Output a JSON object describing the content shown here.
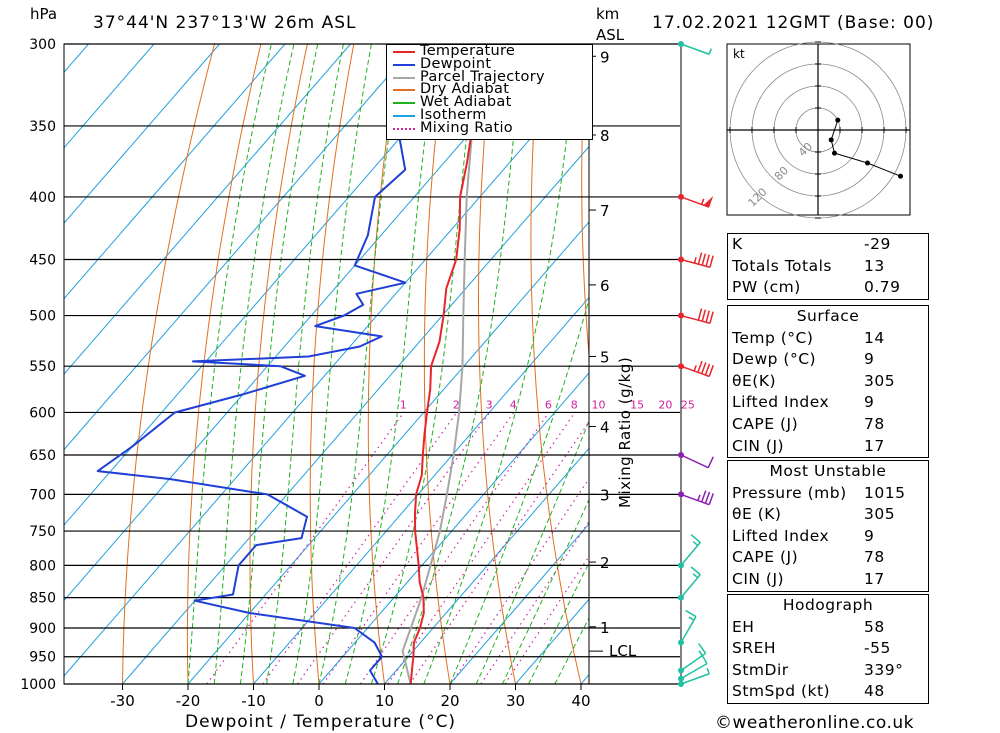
{
  "header": {
    "pressure_unit": "hPa",
    "location": "37°44'N 237°13'W 26m ASL",
    "km_label": "km",
    "asl_label": "ASL",
    "datetime": "17.02.2021 12GMT (Base: 00)"
  },
  "footer": {
    "xlabel": "Dewpoint / Temperature (°C)",
    "mixing_label": "Mixing Ratio (g/kg)",
    "lcl_label": "LCL",
    "credit": "©weatheronline.co.uk"
  },
  "colors": {
    "temperature": "#e8262a",
    "dewpoint": "#1f3fd6",
    "parcel": "#a6a6a6",
    "dry_adiabat": "#e07020",
    "wet_adiabat": "#20b020",
    "isotherm": "#20a0e0",
    "mixing_ratio": "#d020a0",
    "wind_red": "#e8262a",
    "wind_purple": "#8a1fb0",
    "wind_teal": "#20c0a0"
  },
  "legend": [
    {
      "label": "Temperature",
      "color": "#e8262a",
      "style": "solid"
    },
    {
      "label": "Dewpoint",
      "color": "#1f3fd6",
      "style": "solid"
    },
    {
      "label": "Parcel Trajectory",
      "color": "#a6a6a6",
      "style": "solid"
    },
    {
      "label": "Dry Adiabat",
      "color": "#e07020",
      "style": "solid"
    },
    {
      "label": "Wet Adiabat",
      "color": "#20b020",
      "style": "solid"
    },
    {
      "label": "Isotherm",
      "color": "#20a0e0",
      "style": "solid"
    },
    {
      "label": "Mixing Ratio",
      "color": "#d020a0",
      "style": "dotted"
    }
  ],
  "hodograph": {
    "unit_label": "kt",
    "ring_labels": [
      "40",
      "80",
      "120"
    ]
  },
  "indices": [
    {
      "label": "K",
      "value": "-29"
    },
    {
      "label": "Totals Totals",
      "value": "13"
    },
    {
      "label": "PW (cm)",
      "value": "0.79"
    }
  ],
  "surface": {
    "title": "Surface",
    "rows": [
      {
        "label": "Temp (°C)",
        "value": "14"
      },
      {
        "label": "Dewp (°C)",
        "value": "9"
      },
      {
        "label": "θE(K)",
        "value": "305"
      },
      {
        "label": "Lifted Index",
        "value": "9"
      },
      {
        "label": "CAPE (J)",
        "value": "78"
      },
      {
        "label": "CIN (J)",
        "value": "17"
      }
    ]
  },
  "most_unstable": {
    "title": "Most Unstable",
    "rows": [
      {
        "label": "Pressure (mb)",
        "value": "1015"
      },
      {
        "label": "θE (K)",
        "value": "305"
      },
      {
        "label": "Lifted Index",
        "value": "9"
      },
      {
        "label": "CAPE (J)",
        "value": "78"
      },
      {
        "label": "CIN (J)",
        "value": "17"
      }
    ]
  },
  "hodograph_table": {
    "title": "Hodograph",
    "rows": [
      {
        "label": "EH",
        "value": "58"
      },
      {
        "label": "SREH",
        "value": "-55"
      },
      {
        "label": "StmDir",
        "value": "339°"
      },
      {
        "label": "StmSpd (kt)",
        "value": "48"
      }
    ]
  },
  "chart_data": {
    "type": "skew-t",
    "ylabel": "hPa",
    "xlabel": "Dewpoint / Temperature (°C)",
    "pressure_levels": [
      300,
      350,
      400,
      450,
      500,
      550,
      600,
      650,
      700,
      750,
      800,
      850,
      900,
      950,
      1000
    ],
    "temperature_ticks": [
      -30,
      -20,
      -10,
      0,
      10,
      20,
      30,
      40
    ],
    "xlim": [
      -40,
      40
    ],
    "ylim": [
      1000,
      300
    ],
    "km_ticks": [
      {
        "km": 1,
        "p": 898
      },
      {
        "km": 2,
        "p": 795
      },
      {
        "km": 3,
        "p": 700
      },
      {
        "km": 4,
        "p": 616
      },
      {
        "km": 5,
        "p": 540
      },
      {
        "km": 6,
        "p": 472
      },
      {
        "km": 7,
        "p": 410
      },
      {
        "km": 8,
        "p": 356
      },
      {
        "km": 9,
        "p": 307
      }
    ],
    "lcl_pressure": 940,
    "mixing_ratio_labels": [
      "1",
      "2",
      "3",
      "4",
      "6",
      "8",
      "10",
      "15",
      "20",
      "25"
    ],
    "mixing_ratio_values": [
      1,
      2,
      3,
      4,
      6,
      8,
      10,
      15,
      20,
      25
    ],
    "temperature_profile": [
      {
        "p": 1000,
        "t": 14.0
      },
      {
        "p": 975,
        "t": 12.4
      },
      {
        "p": 950,
        "t": 10.8
      },
      {
        "p": 925,
        "t": 9.0
      },
      {
        "p": 900,
        "t": 8.0
      },
      {
        "p": 875,
        "t": 6.6
      },
      {
        "p": 850,
        "t": 4.5
      },
      {
        "p": 825,
        "t": 1.8
      },
      {
        "p": 800,
        "t": -0.5
      },
      {
        "p": 775,
        "t": -3.0
      },
      {
        "p": 750,
        "t": -5.6
      },
      {
        "p": 725,
        "t": -8.0
      },
      {
        "p": 700,
        "t": -10.3
      },
      {
        "p": 675,
        "t": -12.0
      },
      {
        "p": 650,
        "t": -14.5
      },
      {
        "p": 625,
        "t": -17.0
      },
      {
        "p": 600,
        "t": -19.5
      },
      {
        "p": 575,
        "t": -22.0
      },
      {
        "p": 550,
        "t": -25.0
      },
      {
        "p": 525,
        "t": -27.0
      },
      {
        "p": 500,
        "t": -29.8
      },
      {
        "p": 475,
        "t": -33.0
      },
      {
        "p": 450,
        "t": -35.3
      },
      {
        "p": 425,
        "t": -38.8
      },
      {
        "p": 400,
        "t": -43.0
      },
      {
        "p": 375,
        "t": -46.5
      },
      {
        "p": 350,
        "t": -50.5
      },
      {
        "p": 325,
        "t": -54.0
      },
      {
        "p": 300,
        "t": -57.0
      }
    ],
    "dewpoint_profile": [
      {
        "p": 1000,
        "t": 9.0
      },
      {
        "p": 975,
        "t": 6.0
      },
      {
        "p": 950,
        "t": 6.0
      },
      {
        "p": 925,
        "t": 3.0
      },
      {
        "p": 900,
        "t": -2.0
      },
      {
        "p": 875,
        "t": -20.0
      },
      {
        "p": 855,
        "t": -30.0
      },
      {
        "p": 845,
        "t": -25.0
      },
      {
        "p": 800,
        "t": -28.0
      },
      {
        "p": 770,
        "t": -28.0
      },
      {
        "p": 760,
        "t": -22.0
      },
      {
        "p": 730,
        "t": -24.0
      },
      {
        "p": 700,
        "t": -33.0
      },
      {
        "p": 680,
        "t": -50.0
      },
      {
        "p": 670,
        "t": -62.0
      },
      {
        "p": 640,
        "t": -60.0
      },
      {
        "p": 600,
        "t": -58.0
      },
      {
        "p": 580,
        "t": -50.0
      },
      {
        "p": 560,
        "t": -43.0
      },
      {
        "p": 550,
        "t": -48.0
      },
      {
        "p": 545,
        "t": -62.0
      },
      {
        "p": 540,
        "t": -45.0
      },
      {
        "p": 530,
        "t": -38.5
      },
      {
        "p": 520,
        "t": -36.5
      },
      {
        "p": 510,
        "t": -48.0
      },
      {
        "p": 500,
        "t": -45.0
      },
      {
        "p": 490,
        "t": -43.5
      },
      {
        "p": 480,
        "t": -46.0
      },
      {
        "p": 470,
        "t": -40.0
      },
      {
        "p": 455,
        "t": -50.0
      },
      {
        "p": 430,
        "t": -52.0
      },
      {
        "p": 400,
        "t": -56.0
      },
      {
        "p": 380,
        "t": -55.0
      },
      {
        "p": 350,
        "t": -62.0
      },
      {
        "p": 320,
        "t": -66.0
      },
      {
        "p": 300,
        "t": -70.0
      }
    ],
    "parcel_profile": [
      {
        "p": 1000,
        "t": 14.0
      },
      {
        "p": 940,
        "t": 8.4
      },
      {
        "p": 900,
        "t": 6.6
      },
      {
        "p": 850,
        "t": 4.2
      },
      {
        "p": 800,
        "t": 1.3
      },
      {
        "p": 750,
        "t": -1.8
      },
      {
        "p": 700,
        "t": -5.6
      },
      {
        "p": 650,
        "t": -9.8
      },
      {
        "p": 600,
        "t": -14.6
      },
      {
        "p": 550,
        "t": -20.2
      },
      {
        "p": 500,
        "t": -26.8
      },
      {
        "p": 450,
        "t": -34.0
      },
      {
        "p": 400,
        "t": -42.0
      },
      {
        "p": 350,
        "t": -50.5
      },
      {
        "p": 300,
        "t": -59.5
      }
    ],
    "wind_barbs": [
      {
        "p": 1000,
        "dir": 290,
        "kt": 5,
        "color": "teal"
      },
      {
        "p": 990,
        "dir": 300,
        "kt": 10,
        "color": "teal"
      },
      {
        "p": 975,
        "dir": 305,
        "kt": 15,
        "color": "teal"
      },
      {
        "p": 925,
        "dir": 330,
        "kt": 15,
        "color": "teal"
      },
      {
        "p": 850,
        "dir": 320,
        "kt": 15,
        "color": "teal"
      },
      {
        "p": 800,
        "dir": 320,
        "kt": 15,
        "color": "teal"
      },
      {
        "p": 700,
        "dir": 250,
        "kt": 35,
        "color": "purple"
      },
      {
        "p": 650,
        "dir": 245,
        "kt": 10,
        "color": "purple"
      },
      {
        "p": 550,
        "dir": 250,
        "kt": 45,
        "color": "red"
      },
      {
        "p": 500,
        "dir": 255,
        "kt": 40,
        "color": "red"
      },
      {
        "p": 450,
        "dir": 255,
        "kt": 45,
        "color": "red"
      },
      {
        "p": 400,
        "dir": 250,
        "kt": 55,
        "color": "red"
      },
      {
        "p": 300,
        "dir": 250,
        "kt": 5,
        "color": "teal"
      }
    ],
    "hodograph_points": [
      {
        "u": 12,
        "v": 6
      },
      {
        "u": 8,
        "v": -6
      },
      {
        "u": 10,
        "v": -14
      },
      {
        "u": 30,
        "v": -20
      },
      {
        "u": 50,
        "v": -28
      }
    ]
  }
}
